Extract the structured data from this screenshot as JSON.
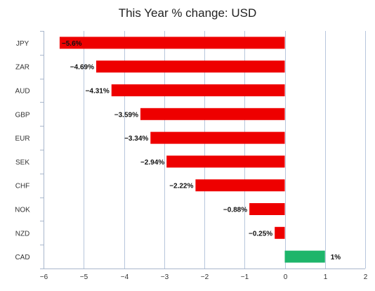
{
  "chart_data": {
    "type": "bar",
    "orientation": "horizontal",
    "title": "This Year % change: USD",
    "xlabel": "",
    "ylabel": "",
    "categories": [
      "JPY",
      "ZAR",
      "AUD",
      "GBP",
      "EUR",
      "SEK",
      "CHF",
      "NOK",
      "NZD",
      "CAD"
    ],
    "values": [
      -5.6,
      -4.69,
      -4.31,
      -3.59,
      -3.34,
      -2.94,
      -2.22,
      -0.88,
      -0.25,
      1
    ],
    "data_labels": [
      "-5.6%",
      "-4.69%",
      "-4.31%",
      "-3.59%",
      "-3.34%",
      "-2.94%",
      "-2.22%",
      "-0.88%",
      "-0.25%",
      "1%"
    ],
    "xlim": [
      -6,
      2
    ],
    "xticks": [
      -6,
      -5,
      -4,
      -3,
      -2,
      -1,
      0,
      1,
      2
    ],
    "xtick_labels": [
      "−6",
      "−5",
      "−4",
      "−3",
      "−2",
      "−1",
      "0",
      "1",
      "2"
    ],
    "grid": "vertical",
    "legend": "none",
    "colors": {
      "negative": "#ee0000",
      "positive": "#1db56a",
      "grid": "#b7c6dc"
    }
  }
}
